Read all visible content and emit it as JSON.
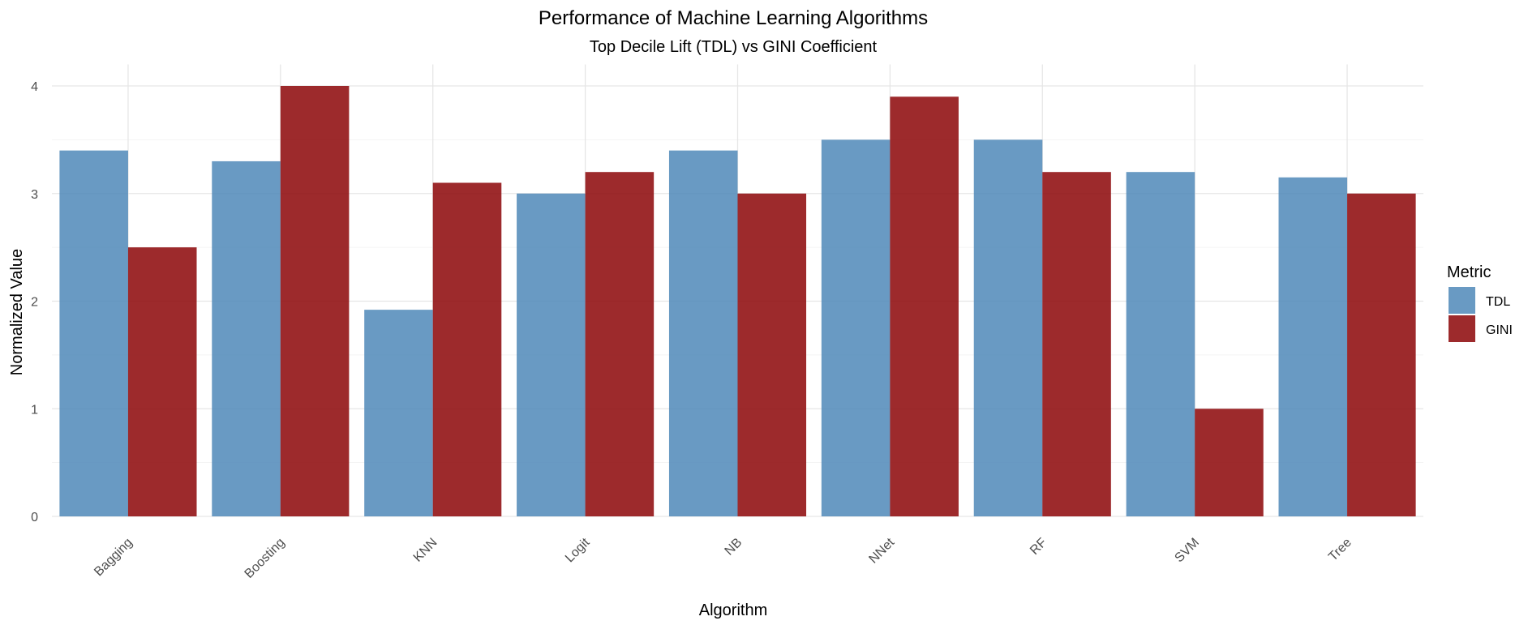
{
  "chart_data": {
    "type": "bar",
    "title": "Performance of Machine Learning Algorithms",
    "subtitle": "Top Decile Lift (TDL) vs GINI Coefficient",
    "xlabel": "Algorithm",
    "ylabel": "Normalized Value",
    "categories": [
      "Bagging",
      "Boosting",
      "KNN",
      "Logit",
      "NB",
      "NNet",
      "RF",
      "SVM",
      "Tree"
    ],
    "series": [
      {
        "name": "TDL",
        "color": "#4f88b9",
        "values": [
          3.4,
          3.3,
          1.92,
          3.0,
          3.4,
          3.5,
          3.5,
          3.2,
          3.15
        ]
      },
      {
        "name": "GINI",
        "color": "#8f0d0f",
        "values": [
          2.5,
          4.0,
          3.1,
          3.2,
          3.0,
          3.9,
          3.2,
          1.0,
          3.0
        ]
      }
    ],
    "ylim": [
      0,
      4.2
    ],
    "yticks": [
      0,
      1,
      2,
      3,
      4
    ],
    "grid": true,
    "legend": {
      "title": "Metric",
      "position": "right"
    }
  }
}
